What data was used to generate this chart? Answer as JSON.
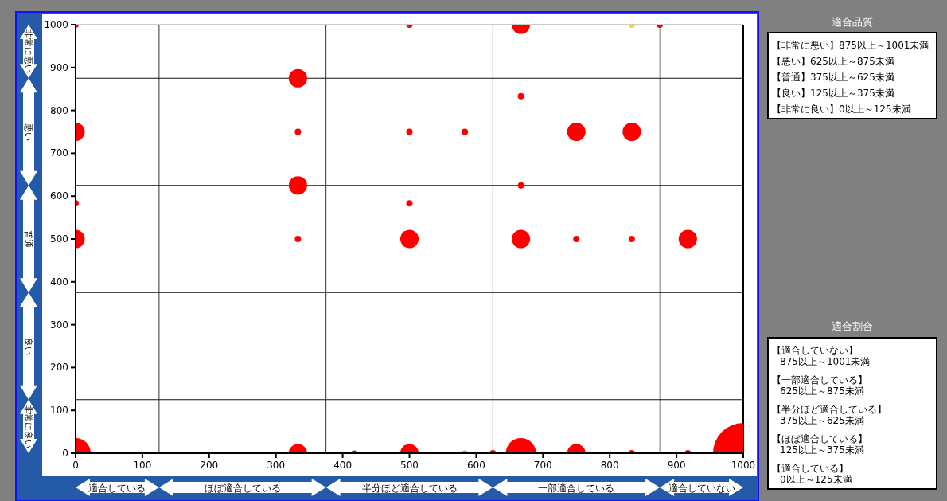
{
  "chart_data": [
    {
      "type": "bubble",
      "x": [
        0,
        333,
        500,
        667,
        833,
        875,
        0,
        333,
        500,
        583,
        750,
        833,
        667,
        333,
        667,
        0,
        500,
        0,
        333,
        500,
        667,
        750,
        833,
        917,
        0,
        333,
        417,
        500,
        583,
        625,
        667,
        750,
        833,
        917,
        1000
      ],
      "values": [
        1000,
        875,
        1000,
        1000,
        1000,
        1000,
        750,
        750,
        750,
        750,
        750,
        750,
        833,
        625,
        625,
        583,
        583,
        500,
        500,
        500,
        500,
        500,
        500,
        500,
        0,
        0,
        0,
        0,
        0,
        0,
        0,
        0,
        0,
        0,
        0
      ],
      "sizes": [
        0.011,
        0.092,
        0.011,
        0.092,
        0.011,
        0.011,
        0.092,
        0.011,
        0.011,
        0.011,
        0.092,
        0.092,
        0.011,
        0.092,
        0.011,
        0.011,
        0.011,
        0.092,
        0.011,
        0.092,
        0.092,
        0.011,
        0.011,
        0.092,
        0.25,
        0.092,
        0.009,
        0.092,
        0.009,
        0.011,
        0.25,
        0.092,
        0.011,
        0.011,
        1
      ],
      "colors": [
        "#ff0000",
        "#ff0000",
        "#ff0000",
        "#ff0000",
        "#ffd700",
        "#ff0000",
        "#ff0000",
        "#ff0000",
        "#ff0000",
        "#ff0000",
        "#ff0000",
        "#ff0000",
        "#ff0000",
        "#ff0000",
        "#ff0000",
        "#ff0000",
        "#ff0000",
        "#ff0000",
        "#ff0000",
        "#ff0000",
        "#ff0000",
        "#ff0000",
        "#ff0000",
        "#ff0000",
        "#ff0000",
        "#ff0000",
        "#ff0000",
        "#ff0000",
        "#f08060",
        "#ff0000",
        "#ff0000",
        "#ff0000",
        "#ff0000",
        "#ff0000",
        "#ff0000"
      ],
      "xlim": [
        0,
        1000
      ],
      "ylim": [
        0,
        1000
      ],
      "xticks": [
        0,
        100,
        200,
        300,
        400,
        500,
        600,
        700,
        800,
        900,
        1000
      ],
      "yticks": [
        0,
        100,
        200,
        300,
        400,
        500,
        600,
        700,
        800,
        900,
        1000
      ],
      "grid": false,
      "ref_lines": [
        {
          "axis": "x",
          "value": 125,
          "color": "#333333"
        },
        {
          "axis": "x",
          "value": 375,
          "color": "#333333"
        },
        {
          "axis": "x",
          "value": 625,
          "color": "#555555"
        },
        {
          "axis": "x",
          "value": 875,
          "color": "#777777"
        },
        {
          "axis": "y",
          "value": 125,
          "color": "#111111"
        },
        {
          "axis": "y",
          "value": 375,
          "color": "#111111"
        },
        {
          "axis": "y",
          "value": 625,
          "color": "#111111"
        },
        {
          "axis": "y",
          "value": 875,
          "color": "#111111"
        }
      ],
      "annotations": [
        "適合している",
        "ほぼ適合している",
        "半分ほど適合している",
        "一部適合している",
        "適合していない",
        "非常に良い",
        "良い",
        "普通",
        "悪い",
        "非常に悪い"
      ]
    },
    {
      "type": "other",
      "title": "適合品質",
      "annotations": [
        "【非常に悪い】875以上～1001未満",
        "【悪い】625以上～875未満",
        "【普通】375以上～625未満",
        "【良い】125以上～375未満",
        "【非常に良い】0以上～125未満"
      ]
    },
    {
      "type": "other",
      "title": "適合割合",
      "annotations": [
        "【適合していない】\n875以上～1001未満",
        "【一部適合している】\n625以上～875未満",
        "【半分ほど適合している】\n375以上～625未満",
        "【ほぼ適合している】\n125以上～375未満",
        "【適合している】\n0以上～125未満"
      ]
    }
  ]
}
